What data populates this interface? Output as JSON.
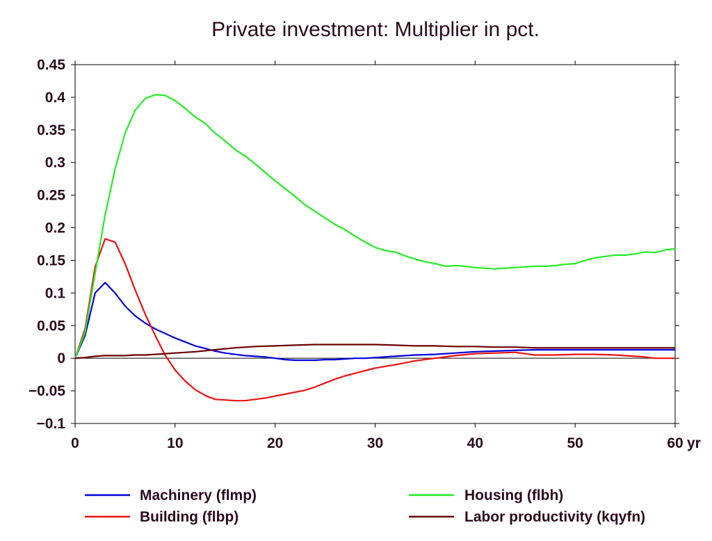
{
  "chart_data": {
    "type": "line",
    "title": "Private investment: Multiplier in pct.",
    "x_unit": "yr",
    "xlim": [
      0,
      60
    ],
    "ylim": [
      -0.1,
      0.45
    ],
    "x_ticks": [
      0,
      10,
      20,
      30,
      40,
      50,
      60
    ],
    "x_tick_labels": [
      "0",
      "10",
      "20",
      "30",
      "40",
      "50",
      "60"
    ],
    "y_ticks": [
      0.45,
      0.4,
      0.35,
      0.3,
      0.25,
      0.2,
      0.15,
      0.1,
      0.05,
      0,
      -0.05,
      -0.1
    ],
    "y_tick_labels": [
      "0.45",
      "0.4",
      "0.35",
      "0.3",
      "0.25",
      "0.2",
      "0.15",
      "0.1",
      "0.05",
      "0",
      "−0.05",
      "−0.1"
    ],
    "grid": false,
    "zero_line": true,
    "legend_position": "bottom",
    "series": [
      {
        "name": "Machinery (flmp)",
        "color": "#0000dd",
        "x": [
          0,
          1,
          2,
          3,
          4,
          5,
          6,
          7,
          8,
          9,
          10,
          11,
          12,
          13,
          14,
          15,
          16,
          17,
          18,
          19,
          20,
          21,
          22,
          23,
          24,
          25,
          26,
          27,
          28,
          29,
          30,
          32,
          34,
          36,
          38,
          40,
          42,
          44,
          46,
          48,
          50,
          52,
          54,
          56,
          58,
          60
        ],
        "y": [
          0,
          0.035,
          0.1,
          0.116,
          0.1,
          0.08,
          0.065,
          0.054,
          0.045,
          0.038,
          0.031,
          0.025,
          0.019,
          0.015,
          0.011,
          0.008,
          0.006,
          0.004,
          0.003,
          0.002,
          0,
          -0.002,
          -0.003,
          -0.003,
          -0.003,
          -0.002,
          -0.002,
          -0.001,
          0,
          0,
          0.001,
          0.003,
          0.005,
          0.006,
          0.008,
          0.01,
          0.011,
          0.012,
          0.013,
          0.013,
          0.013,
          0.013,
          0.013,
          0.013,
          0.013,
          0.013
        ]
      },
      {
        "name": "Building (flbp)",
        "color": "#ee1111",
        "x": [
          0,
          1,
          2,
          3,
          4,
          5,
          6,
          7,
          8,
          9,
          10,
          11,
          12,
          13,
          14,
          15,
          16,
          17,
          18,
          19,
          20,
          21,
          22,
          23,
          24,
          25,
          26,
          27,
          28,
          29,
          30,
          32,
          34,
          36,
          38,
          40,
          42,
          44,
          45,
          46,
          48,
          50,
          52,
          54,
          56,
          57,
          58,
          60
        ],
        "y": [
          0,
          0.045,
          0.14,
          0.183,
          0.178,
          0.145,
          0.105,
          0.068,
          0.035,
          0.005,
          -0.018,
          -0.035,
          -0.048,
          -0.057,
          -0.063,
          -0.064,
          -0.065,
          -0.065,
          -0.063,
          -0.061,
          -0.058,
          -0.055,
          -0.052,
          -0.049,
          -0.044,
          -0.038,
          -0.032,
          -0.027,
          -0.023,
          -0.019,
          -0.015,
          -0.01,
          -0.004,
          0,
          0.004,
          0.007,
          0.008,
          0.009,
          0.007,
          0.005,
          0.005,
          0.006,
          0.006,
          0.005,
          0.003,
          0.002,
          0,
          0
        ]
      },
      {
        "name": "Housing (flbh)",
        "color": "#22ee22",
        "x": [
          0,
          1,
          2,
          3,
          4,
          5,
          6,
          7,
          8,
          9,
          10,
          11,
          12,
          13,
          14,
          15,
          16,
          17,
          18,
          19,
          20,
          21,
          22,
          23,
          24,
          25,
          26,
          27,
          28,
          29,
          30,
          31,
          32,
          33,
          34,
          35,
          36,
          37,
          38,
          39,
          40,
          41,
          42,
          43,
          44,
          45,
          46,
          47,
          48,
          49,
          50,
          51,
          52,
          53,
          54,
          55,
          56,
          57,
          58,
          59,
          60
        ],
        "y": [
          0,
          0.04,
          0.13,
          0.22,
          0.29,
          0.345,
          0.38,
          0.398,
          0.404,
          0.403,
          0.395,
          0.383,
          0.37,
          0.36,
          0.345,
          0.333,
          0.32,
          0.31,
          0.298,
          0.285,
          0.272,
          0.26,
          0.248,
          0.235,
          0.225,
          0.215,
          0.205,
          0.197,
          0.187,
          0.178,
          0.17,
          0.165,
          0.163,
          0.157,
          0.152,
          0.148,
          0.145,
          0.141,
          0.142,
          0.141,
          0.139,
          0.138,
          0.137,
          0.138,
          0.139,
          0.14,
          0.141,
          0.141,
          0.142,
          0.144,
          0.145,
          0.15,
          0.154,
          0.156,
          0.158,
          0.158,
          0.16,
          0.163,
          0.162,
          0.166,
          0.168
        ]
      },
      {
        "name": "Labor productivity (kqyfn)",
        "color": "#6b0000",
        "x": [
          0,
          1,
          2,
          3,
          4,
          5,
          6,
          7,
          8,
          9,
          10,
          12,
          14,
          16,
          18,
          20,
          22,
          24,
          26,
          28,
          30,
          32,
          34,
          36,
          38,
          40,
          42,
          44,
          46,
          48,
          50,
          52,
          54,
          56,
          58,
          60
        ],
        "y": [
          0,
          0.001,
          0.003,
          0.004,
          0.004,
          0.004,
          0.005,
          0.005,
          0.006,
          0.007,
          0.008,
          0.01,
          0.013,
          0.016,
          0.018,
          0.019,
          0.02,
          0.021,
          0.021,
          0.021,
          0.021,
          0.02,
          0.019,
          0.019,
          0.018,
          0.018,
          0.017,
          0.017,
          0.016,
          0.016,
          0.016,
          0.016,
          0.016,
          0.016,
          0.016,
          0.016
        ]
      }
    ],
    "legend": [
      {
        "label": "Machinery (flmp)",
        "color": "#0000dd"
      },
      {
        "label": "Housing (flbh)",
        "color": "#22ee22"
      },
      {
        "label": "Building (flbp)",
        "color": "#ee1111"
      },
      {
        "label": "Labor productivity (kqyfn)",
        "color": "#6b0000"
      }
    ]
  }
}
